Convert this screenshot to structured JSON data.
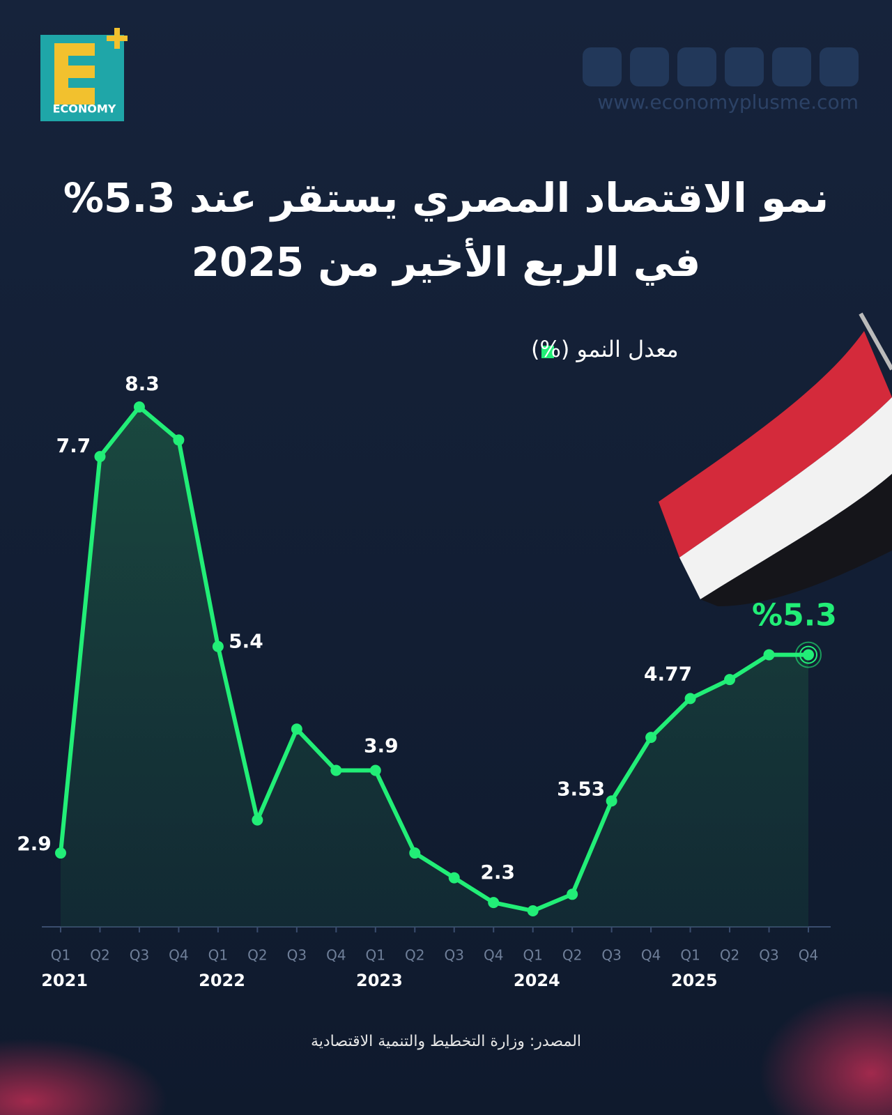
{
  "logo": {
    "text": "ECONOMY"
  },
  "header": {
    "website": "www.economyplusme.com"
  },
  "chart_data": {
    "type": "line",
    "title_lines": [
      "نمو الاقتصاد المصري يستقر عند 5.3%",
      "في الربع الأخير من 2025"
    ],
    "series": [
      {
        "name": "معدل النمو (%)",
        "color": "#22ee77",
        "values": [
          2.9,
          7.7,
          8.3,
          7.9,
          5.4,
          3.3,
          4.4,
          3.9,
          3.9,
          2.9,
          2.6,
          2.3,
          2.2,
          2.4,
          3.53,
          4.3,
          4.77,
          5.0,
          5.3,
          5.3
        ],
        "value_labels": [
          "2.9",
          "7.7",
          "8.3",
          null,
          "5.4",
          null,
          null,
          null,
          "3.9",
          null,
          null,
          "2.3",
          null,
          null,
          "3.53",
          null,
          "4.77",
          null,
          null,
          "%5.3"
        ]
      }
    ],
    "categories": [
      "Q1",
      "Q2",
      "Q3",
      "Q4",
      "Q1",
      "Q2",
      "Q3",
      "Q4",
      "Q1",
      "Q2",
      "Q3",
      "Q4",
      "Q1",
      "Q2",
      "Q3",
      "Q4",
      "Q1",
      "Q2",
      "Q3",
      "Q4"
    ],
    "years": [
      "2021",
      "2022",
      "2023",
      "2024",
      "2025"
    ],
    "source": "المصدر: وزارة التخطيط والتنمية الاقتصادية"
  }
}
